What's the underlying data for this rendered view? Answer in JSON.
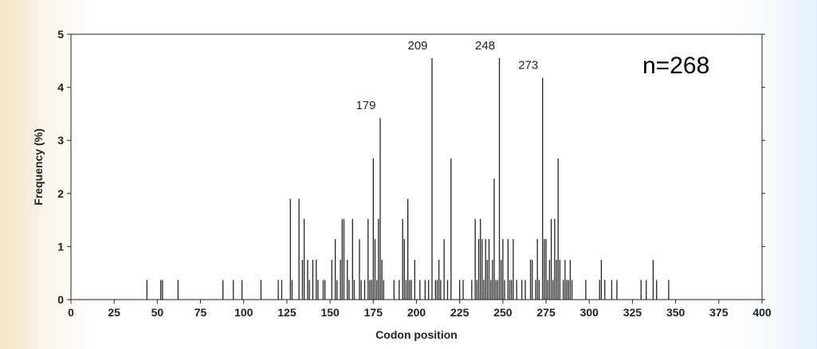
{
  "chart_data": {
    "type": "bar",
    "title": "",
    "xlabel": "Codon position",
    "ylabel": "Frequency (%)",
    "xlim": [
      0,
      400
    ],
    "ylim": [
      0,
      5
    ],
    "x_ticks": [
      0,
      25,
      50,
      75,
      100,
      125,
      150,
      175,
      200,
      225,
      250,
      275,
      300,
      325,
      350,
      375,
      400
    ],
    "y_ticks": [
      0,
      1,
      2,
      3,
      4,
      5
    ],
    "annotation": "n=268",
    "peak_labels": [
      {
        "x": 179,
        "text": "179"
      },
      {
        "x": 209,
        "text": "209"
      },
      {
        "x": 248,
        "text": "248"
      },
      {
        "x": 273,
        "text": "273"
      }
    ],
    "grid": false,
    "legend": "none",
    "bar_color": "#222222",
    "points": [
      {
        "x": 44,
        "y": 0.37
      },
      {
        "x": 52,
        "y": 0.37
      },
      {
        "x": 53,
        "y": 0.37
      },
      {
        "x": 62,
        "y": 0.37
      },
      {
        "x": 88,
        "y": 0.37
      },
      {
        "x": 94,
        "y": 0.37
      },
      {
        "x": 99,
        "y": 0.37
      },
      {
        "x": 110,
        "y": 0.37
      },
      {
        "x": 120,
        "y": 0.37
      },
      {
        "x": 122,
        "y": 0.37
      },
      {
        "x": 127,
        "y": 1.9
      },
      {
        "x": 128,
        "y": 0.37
      },
      {
        "x": 132,
        "y": 1.9
      },
      {
        "x": 134,
        "y": 0.75
      },
      {
        "x": 135,
        "y": 1.52
      },
      {
        "x": 137,
        "y": 0.75
      },
      {
        "x": 138,
        "y": 0.37
      },
      {
        "x": 140,
        "y": 0.75
      },
      {
        "x": 142,
        "y": 0.75
      },
      {
        "x": 143,
        "y": 0.37
      },
      {
        "x": 146,
        "y": 0.37
      },
      {
        "x": 147,
        "y": 0.37
      },
      {
        "x": 151,
        "y": 0.75
      },
      {
        "x": 153,
        "y": 1.14
      },
      {
        "x": 154,
        "y": 0.37
      },
      {
        "x": 156,
        "y": 0.75
      },
      {
        "x": 157,
        "y": 1.52
      },
      {
        "x": 158,
        "y": 1.52
      },
      {
        "x": 160,
        "y": 0.75
      },
      {
        "x": 161,
        "y": 0.37
      },
      {
        "x": 163,
        "y": 1.52
      },
      {
        "x": 164,
        "y": 0.37
      },
      {
        "x": 167,
        "y": 1.14
      },
      {
        "x": 168,
        "y": 0.37
      },
      {
        "x": 170,
        "y": 0.37
      },
      {
        "x": 172,
        "y": 1.52
      },
      {
        "x": 173,
        "y": 0.37
      },
      {
        "x": 174,
        "y": 0.37
      },
      {
        "x": 175,
        "y": 2.66
      },
      {
        "x": 176,
        "y": 1.14
      },
      {
        "x": 177,
        "y": 0.37
      },
      {
        "x": 178,
        "y": 1.52
      },
      {
        "x": 179,
        "y": 3.42
      },
      {
        "x": 180,
        "y": 0.75
      },
      {
        "x": 181,
        "y": 0.37
      },
      {
        "x": 187,
        "y": 0.37
      },
      {
        "x": 190,
        "y": 0.37
      },
      {
        "x": 192,
        "y": 1.52
      },
      {
        "x": 193,
        "y": 1.14
      },
      {
        "x": 194,
        "y": 0.37
      },
      {
        "x": 195,
        "y": 1.9
      },
      {
        "x": 196,
        "y": 0.37
      },
      {
        "x": 197,
        "y": 0.37
      },
      {
        "x": 199,
        "y": 0.75
      },
      {
        "x": 202,
        "y": 0.37
      },
      {
        "x": 205,
        "y": 0.37
      },
      {
        "x": 207,
        "y": 0.37
      },
      {
        "x": 209,
        "y": 4.55
      },
      {
        "x": 211,
        "y": 0.37
      },
      {
        "x": 212,
        "y": 0.37
      },
      {
        "x": 213,
        "y": 0.75
      },
      {
        "x": 214,
        "y": 0.37
      },
      {
        "x": 216,
        "y": 1.14
      },
      {
        "x": 218,
        "y": 0.37
      },
      {
        "x": 220,
        "y": 2.66
      },
      {
        "x": 225,
        "y": 0.37
      },
      {
        "x": 227,
        "y": 0.37
      },
      {
        "x": 232,
        "y": 0.37
      },
      {
        "x": 234,
        "y": 1.52
      },
      {
        "x": 235,
        "y": 0.37
      },
      {
        "x": 236,
        "y": 1.14
      },
      {
        "x": 237,
        "y": 1.52
      },
      {
        "x": 238,
        "y": 1.14
      },
      {
        "x": 239,
        "y": 0.37
      },
      {
        "x": 240,
        "y": 1.14
      },
      {
        "x": 241,
        "y": 0.75
      },
      {
        "x": 242,
        "y": 1.14
      },
      {
        "x": 243,
        "y": 0.37
      },
      {
        "x": 244,
        "y": 0.75
      },
      {
        "x": 245,
        "y": 2.28
      },
      {
        "x": 246,
        "y": 0.37
      },
      {
        "x": 247,
        "y": 0.37
      },
      {
        "x": 248,
        "y": 4.55
      },
      {
        "x": 249,
        "y": 0.75
      },
      {
        "x": 250,
        "y": 1.14
      },
      {
        "x": 251,
        "y": 0.37
      },
      {
        "x": 253,
        "y": 1.14
      },
      {
        "x": 254,
        "y": 0.37
      },
      {
        "x": 255,
        "y": 0.37
      },
      {
        "x": 256,
        "y": 1.14
      },
      {
        "x": 258,
        "y": 0.37
      },
      {
        "x": 261,
        "y": 0.37
      },
      {
        "x": 263,
        "y": 0.37
      },
      {
        "x": 266,
        "y": 0.75
      },
      {
        "x": 267,
        "y": 0.75
      },
      {
        "x": 269,
        "y": 0.37
      },
      {
        "x": 270,
        "y": 1.14
      },
      {
        "x": 271,
        "y": 0.37
      },
      {
        "x": 273,
        "y": 4.18
      },
      {
        "x": 274,
        "y": 1.14
      },
      {
        "x": 275,
        "y": 1.14
      },
      {
        "x": 276,
        "y": 0.37
      },
      {
        "x": 277,
        "y": 0.75
      },
      {
        "x": 278,
        "y": 1.52
      },
      {
        "x": 279,
        "y": 0.37
      },
      {
        "x": 280,
        "y": 1.52
      },
      {
        "x": 281,
        "y": 0.75
      },
      {
        "x": 282,
        "y": 2.66
      },
      {
        "x": 283,
        "y": 0.75
      },
      {
        "x": 285,
        "y": 0.37
      },
      {
        "x": 286,
        "y": 0.75
      },
      {
        "x": 287,
        "y": 0.37
      },
      {
        "x": 288,
        "y": 0.37
      },
      {
        "x": 289,
        "y": 0.75
      },
      {
        "x": 290,
        "y": 0.37
      },
      {
        "x": 298,
        "y": 0.37
      },
      {
        "x": 306,
        "y": 0.37
      },
      {
        "x": 307,
        "y": 0.75
      },
      {
        "x": 309,
        "y": 0.37
      },
      {
        "x": 313,
        "y": 0.37
      },
      {
        "x": 316,
        "y": 0.37
      },
      {
        "x": 330,
        "y": 0.37
      },
      {
        "x": 333,
        "y": 0.37
      },
      {
        "x": 337,
        "y": 0.75
      },
      {
        "x": 339,
        "y": 0.37
      },
      {
        "x": 346,
        "y": 0.37
      }
    ]
  }
}
